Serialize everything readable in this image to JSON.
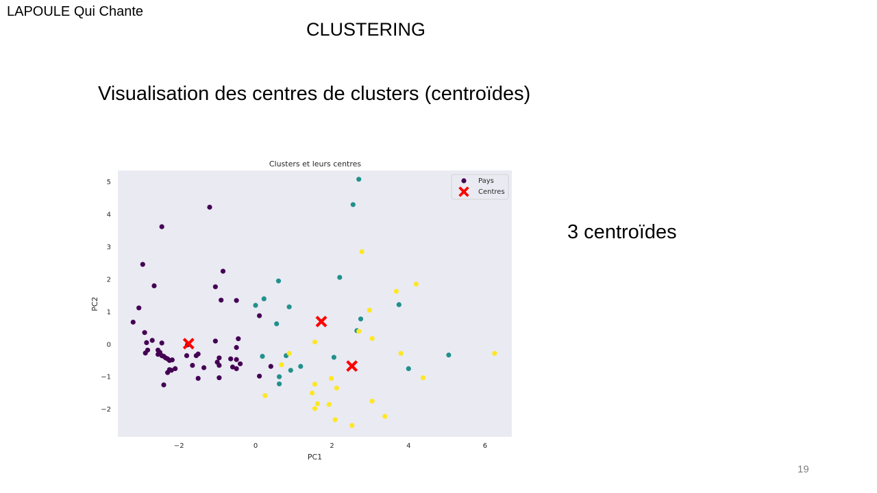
{
  "slide": {
    "brand": "LAPOULE Qui Chante",
    "title": "CLUSTERING",
    "subtitle": "Visualisation des centres de clusters (centroïdes)",
    "note": "3 centroïdes",
    "page_number": "19"
  },
  "chart_data": {
    "type": "scatter",
    "title": "Clusters et leurs centres",
    "xlabel": "PC1",
    "ylabel": "PC2",
    "xlim": [
      -3.6,
      6.7
    ],
    "ylim": [
      -2.85,
      5.35
    ],
    "xticks": [
      -2,
      0,
      2,
      4,
      6
    ],
    "yticks": [
      -2,
      -1,
      0,
      1,
      2,
      3,
      4,
      5
    ],
    "tick_labels_x": [
      "−2",
      "0",
      "2",
      "4",
      "6"
    ],
    "tick_labels_y": [
      "−2",
      "−1",
      "0",
      "1",
      "2",
      "3",
      "4",
      "5"
    ],
    "grid": false,
    "legend_position": "top-right",
    "background_color": "#eaeaf2",
    "cluster_colors": [
      "#440154",
      "#21918c",
      "#fde725"
    ],
    "centers_color": "#ff0000",
    "series": [
      {
        "name": "Pays",
        "clusters": [
          {
            "id": 0,
            "points": [
              [
                -2.45,
                3.62
              ],
              [
                -1.2,
                4.22
              ],
              [
                -2.95,
                2.46
              ],
              [
                -2.65,
                1.8
              ],
              [
                -0.85,
                2.25
              ],
              [
                -1.05,
                1.77
              ],
              [
                -3.05,
                1.12
              ],
              [
                -3.2,
                0.68
              ],
              [
                -0.9,
                1.36
              ],
              [
                -0.5,
                1.35
              ],
              [
                -2.9,
                0.36
              ],
              [
                -2.7,
                0.12
              ],
              [
                -2.85,
                0.05
              ],
              [
                -2.45,
                0.04
              ],
              [
                -1.78,
                -0.02
              ],
              [
                -1.05,
                0.1
              ],
              [
                -0.45,
                0.17
              ],
              [
                -0.5,
                -0.1
              ],
              [
                -2.82,
                -0.18
              ],
              [
                -2.88,
                -0.27
              ],
              [
                -2.55,
                -0.18
              ],
              [
                -2.5,
                -0.25
              ],
              [
                -2.55,
                -0.31
              ],
              [
                -2.45,
                -0.35
              ],
              [
                -2.4,
                -0.37
              ],
              [
                -2.35,
                -0.42
              ],
              [
                -2.3,
                -0.45
              ],
              [
                -2.25,
                -0.5
              ],
              [
                -2.18,
                -0.48
              ],
              [
                -1.8,
                -0.35
              ],
              [
                -1.55,
                -0.35
              ],
              [
                -1.5,
                -0.3
              ],
              [
                -0.95,
                -0.42
              ],
              [
                -0.65,
                -0.45
              ],
              [
                -0.5,
                -0.47
              ],
              [
                -1.0,
                -0.55
              ],
              [
                -0.4,
                -0.6
              ],
              [
                -0.95,
                -0.65
              ],
              [
                -1.65,
                -0.65
              ],
              [
                -1.35,
                -0.72
              ],
              [
                -0.6,
                -0.7
              ],
              [
                -0.5,
                -0.75
              ],
              [
                -2.1,
                -0.75
              ],
              [
                -2.2,
                -0.8
              ],
              [
                -2.25,
                -0.78
              ],
              [
                -2.3,
                -0.87
              ],
              [
                -1.5,
                -1.05
              ],
              [
                -0.95,
                -1.03
              ],
              [
                -2.4,
                -1.25
              ],
              [
                0.1,
                0.88
              ],
              [
                0.1,
                -0.98
              ],
              [
                0.4,
                -0.68
              ]
            ]
          },
          {
            "id": 1,
            "points": [
              [
                2.7,
                5.08
              ],
              [
                2.55,
                4.3
              ],
              [
                0.6,
                1.95
              ],
              [
                2.2,
                2.06
              ],
              [
                0.22,
                1.4
              ],
              [
                0.0,
                1.2
              ],
              [
                0.88,
                1.15
              ],
              [
                3.75,
                1.22
              ],
              [
                2.75,
                0.78
              ],
              [
                0.55,
                0.63
              ],
              [
                2.65,
                0.42
              ],
              [
                0.18,
                -0.37
              ],
              [
                0.8,
                -0.35
              ],
              [
                2.05,
                -0.4
              ],
              [
                5.05,
                -0.33
              ],
              [
                1.18,
                -0.68
              ],
              [
                0.92,
                -0.8
              ],
              [
                4.0,
                -0.75
              ],
              [
                0.62,
                -1.0
              ],
              [
                0.62,
                -1.22
              ]
            ]
          },
          {
            "id": 2,
            "points": [
              [
                2.78,
                2.85
              ],
              [
                4.2,
                1.85
              ],
              [
                3.68,
                1.63
              ],
              [
                2.98,
                1.05
              ],
              [
                2.7,
                0.4
              ],
              [
                3.05,
                0.18
              ],
              [
                1.55,
                0.07
              ],
              [
                0.88,
                -0.28
              ],
              [
                3.8,
                -0.28
              ],
              [
                6.25,
                -0.28
              ],
              [
                0.68,
                -0.63
              ],
              [
                1.98,
                -1.05
              ],
              [
                4.38,
                -1.03
              ],
              [
                1.55,
                -1.23
              ],
              [
                2.12,
                -1.35
              ],
              [
                1.48,
                -1.5
              ],
              [
                0.25,
                -1.58
              ],
              [
                3.05,
                -1.75
              ],
              [
                1.62,
                -1.83
              ],
              [
                1.92,
                -1.85
              ],
              [
                1.55,
                -1.98
              ],
              [
                3.38,
                -2.22
              ],
              [
                2.08,
                -2.32
              ],
              [
                2.52,
                -2.5
              ]
            ]
          }
        ]
      },
      {
        "name": "Centres",
        "marker": "X",
        "points": [
          [
            -1.75,
            0.02
          ],
          [
            1.72,
            0.7
          ],
          [
            2.52,
            -0.67
          ]
        ]
      }
    ]
  }
}
